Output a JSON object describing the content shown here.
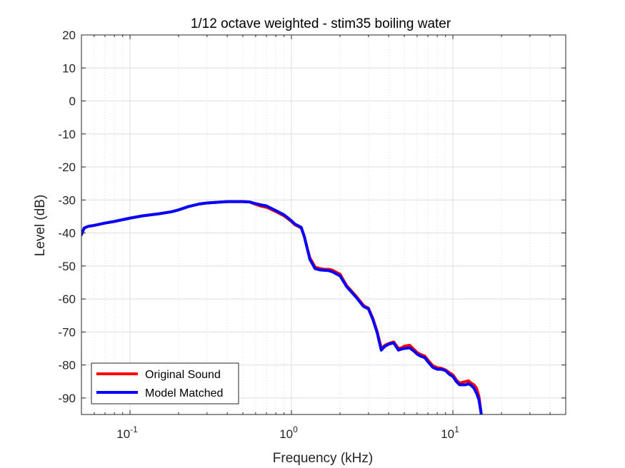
{
  "chart_data": {
    "type": "line",
    "title": "1/12 octave weighted - stim35 boiling water",
    "xlabel": "Frequency (kHz)",
    "ylabel": "Level (dB)",
    "xscale": "log",
    "xlim": [
      0.05,
      50
    ],
    "ylim": [
      -95,
      20
    ],
    "yticks": [
      20,
      10,
      0,
      -10,
      -20,
      -30,
      -40,
      -50,
      -60,
      -70,
      -80,
      -90
    ],
    "xtick_labels": [
      {
        "base": "10",
        "exp": "-1",
        "value": 0.1
      },
      {
        "base": "10",
        "exp": "0",
        "value": 1
      },
      {
        "base": "10",
        "exp": "1",
        "value": 10
      }
    ],
    "grid": true,
    "minor_grid": true,
    "legend_location": "bottom-left",
    "series": [
      {
        "name": "Original Sound",
        "color": "#ff0000",
        "x": [
          0.05,
          0.052,
          0.055,
          0.06,
          0.07,
          0.08,
          0.1,
          0.12,
          0.15,
          0.18,
          0.2,
          0.23,
          0.27,
          0.3,
          0.35,
          0.4,
          0.45,
          0.5,
          0.55,
          0.6,
          0.65,
          0.7,
          0.8,
          0.9,
          1.0,
          1.05,
          1.1,
          1.15,
          1.2,
          1.25,
          1.3,
          1.4,
          1.5,
          1.6,
          1.7,
          1.8,
          2.0,
          2.2,
          2.5,
          2.8,
          3.0,
          3.2,
          3.4,
          3.5,
          3.6,
          3.8,
          4.0,
          4.3,
          4.6,
          4.8,
          5.0,
          5.4,
          5.8,
          6.0,
          6.3,
          6.7,
          7.0,
          7.5,
          8.0,
          8.5,
          9.0,
          9.5,
          10.0,
          10.5,
          11.0,
          12.0,
          12.5,
          13.0,
          13.5,
          14.0,
          14.5,
          15.0
        ],
        "y": [
          -40.5,
          -38.5,
          -38.0,
          -37.7,
          -37.0,
          -36.5,
          -35.5,
          -34.8,
          -34.2,
          -33.6,
          -33.0,
          -32.0,
          -31.2,
          -30.9,
          -30.7,
          -30.5,
          -30.5,
          -30.5,
          -30.6,
          -31.3,
          -31.9,
          -32.2,
          -33.5,
          -34.8,
          -36.5,
          -37.5,
          -38.0,
          -38.5,
          -41.0,
          -44.5,
          -47.5,
          -50.3,
          -50.8,
          -51.0,
          -51.0,
          -51.3,
          -52.5,
          -56.0,
          -59.0,
          -62.0,
          -62.8,
          -66.0,
          -70.0,
          -72.5,
          -75.0,
          -74.0,
          -73.5,
          -73.0,
          -75.0,
          -74.8,
          -74.3,
          -74.0,
          -75.5,
          -76.2,
          -76.8,
          -77.3,
          -78.5,
          -80.2,
          -80.8,
          -81.0,
          -81.5,
          -82.3,
          -83.0,
          -84.5,
          -85.5,
          -85.0,
          -84.8,
          -85.5,
          -86.0,
          -87.0,
          -89.5,
          -95.0
        ]
      },
      {
        "name": "Model Matched",
        "color": "#0000ff",
        "x": [
          0.05,
          0.052,
          0.055,
          0.06,
          0.07,
          0.08,
          0.1,
          0.12,
          0.15,
          0.18,
          0.2,
          0.23,
          0.27,
          0.3,
          0.35,
          0.4,
          0.45,
          0.5,
          0.55,
          0.6,
          0.65,
          0.7,
          0.8,
          0.9,
          1.0,
          1.05,
          1.1,
          1.15,
          1.2,
          1.25,
          1.3,
          1.4,
          1.5,
          1.6,
          1.7,
          1.8,
          2.0,
          2.2,
          2.5,
          2.8,
          3.0,
          3.2,
          3.4,
          3.5,
          3.6,
          3.8,
          4.0,
          4.3,
          4.6,
          4.8,
          5.0,
          5.4,
          5.8,
          6.0,
          6.3,
          6.7,
          7.0,
          7.5,
          8.0,
          8.5,
          9.0,
          9.5,
          10.0,
          10.5,
          11.0,
          12.0,
          12.5,
          13.0,
          13.5,
          14.0,
          14.5,
          15.0
        ],
        "y": [
          -40.5,
          -38.5,
          -38.0,
          -37.7,
          -37.0,
          -36.5,
          -35.5,
          -34.8,
          -34.2,
          -33.6,
          -33.0,
          -32.0,
          -31.2,
          -30.9,
          -30.7,
          -30.5,
          -30.5,
          -30.5,
          -30.6,
          -31.1,
          -31.5,
          -31.8,
          -33.2,
          -34.5,
          -36.3,
          -37.3,
          -37.8,
          -38.3,
          -41.0,
          -44.5,
          -48.0,
          -50.8,
          -51.2,
          -51.3,
          -51.4,
          -51.8,
          -53.0,
          -56.3,
          -59.3,
          -62.3,
          -63.0,
          -66.3,
          -70.3,
          -73.0,
          -75.5,
          -74.3,
          -73.7,
          -73.3,
          -75.5,
          -75.2,
          -75.0,
          -74.8,
          -76.0,
          -76.7,
          -77.3,
          -77.8,
          -79.0,
          -80.7,
          -81.3,
          -81.3,
          -81.7,
          -82.8,
          -83.5,
          -85.0,
          -86.0,
          -86.0,
          -85.7,
          -86.2,
          -87.0,
          -88.5,
          -90.5,
          -95.0
        ]
      }
    ]
  }
}
